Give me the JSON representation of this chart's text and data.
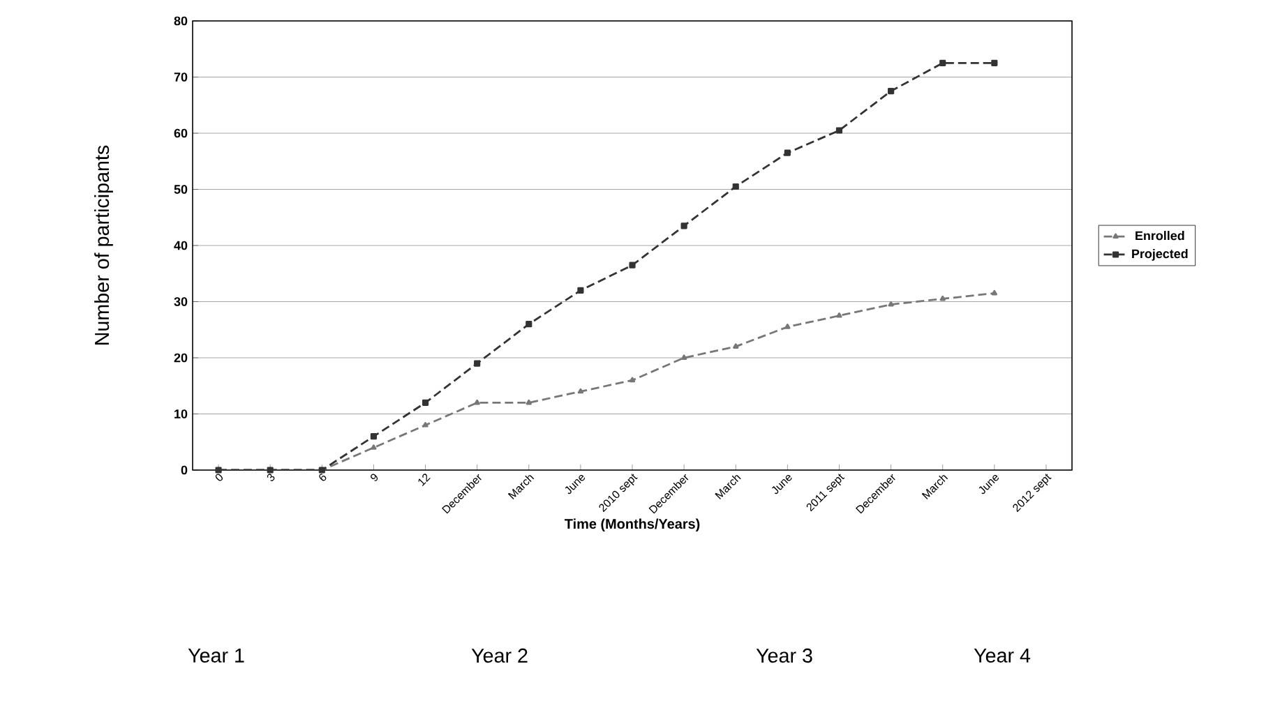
{
  "chart_data": {
    "type": "line",
    "xlabel": "Time (Months/Years)",
    "ylabel": "Number of participants",
    "categories": [
      "0",
      "3",
      "6",
      "9",
      "12",
      "December",
      "March",
      "June",
      "2010 sept",
      "December",
      "March",
      "June",
      "2011 sept",
      "December",
      "March",
      "June",
      "2012 sept"
    ],
    "series": [
      {
        "name": "Enrolled",
        "color": "#777777",
        "marker": "triangle",
        "line_style": "dashed",
        "values": [
          0,
          0,
          0,
          4,
          8,
          12,
          12,
          14,
          16,
          20,
          22,
          25.5,
          27.5,
          29.5,
          30.5,
          31.5,
          null
        ]
      },
      {
        "name": "Projected",
        "color": "#333333",
        "marker": "square",
        "line_style": "dashed",
        "values": [
          0,
          0,
          0,
          6,
          12,
          19,
          26,
          32,
          36.5,
          43.5,
          50.5,
          56.5,
          60.5,
          67.5,
          72.5,
          72.5,
          null
        ]
      }
    ],
    "ylim": [
      0,
      80
    ],
    "yticks": [
      0,
      10,
      20,
      30,
      40,
      50,
      60,
      70,
      80
    ],
    "grid": "y",
    "legend": "right",
    "annotations": [
      "Year 1",
      "Year 2",
      "Year 3",
      "Year 4"
    ]
  }
}
